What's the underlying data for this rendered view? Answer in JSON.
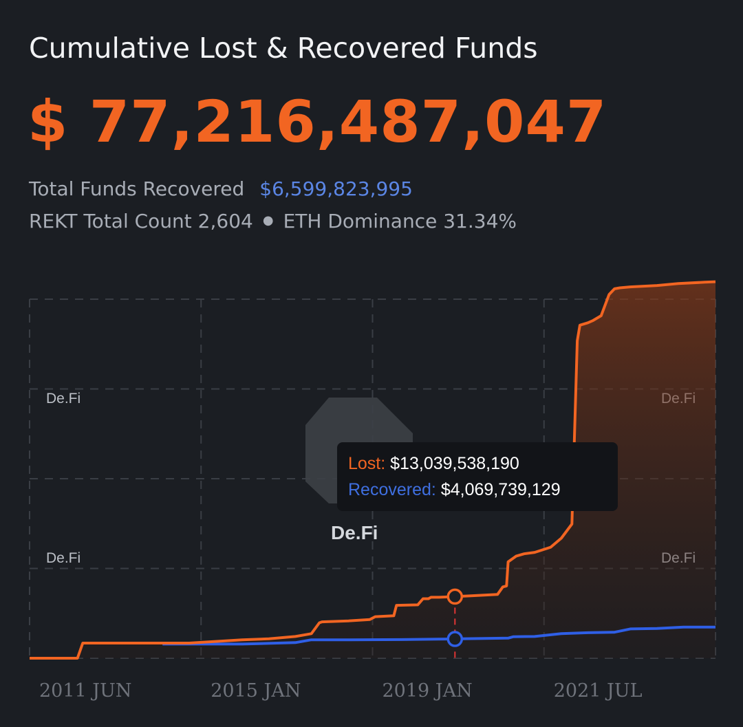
{
  "header": {
    "title": "Cumulative Lost & Recovered Funds",
    "total": "$ 77,216,487,047",
    "recovered_label": "Total Funds Recovered",
    "recovered_value": "$6,599,823,995",
    "count_label": "REKT Total Count 2,604",
    "dominance_label": "ETH Dominance 31.34%"
  },
  "watermark": {
    "small": "De.Fi",
    "big": "De.Fi"
  },
  "tooltip": {
    "lost_label": "Lost:",
    "lost_value": "$13,039,538,190",
    "recovered_label": "Recovered:",
    "recovered_value": "$4,069,739,129"
  },
  "colors": {
    "lost": "#f26522",
    "recovered": "#2f5fe6",
    "background": "#1b1e23"
  },
  "chart_data": {
    "type": "area",
    "x_tick_labels": [
      "2011 JUN",
      "2015 JAN",
      "2019 JAN",
      "2021 JUL"
    ],
    "x_range": [
      2011.0,
      2023.9
    ],
    "y_range_billion_usd": [
      0,
      76
    ],
    "grid": true,
    "series": [
      {
        "name": "Lost",
        "unit": "billion USD",
        "x": [
          2011.0,
          2011.9,
          2012.0,
          2013.0,
          2014.0,
          2015.0,
          2015.5,
          2016.0,
          2016.3,
          2016.45,
          2016.5,
          2017.0,
          2017.4,
          2017.5,
          2017.85,
          2017.9,
          2018.3,
          2018.4,
          2018.5,
          2018.55,
          2018.7,
          2019.0,
          2019.3,
          2019.8,
          2019.9,
          2019.97,
          2020.0,
          2020.15,
          2020.3,
          2020.5,
          2020.8,
          2021.0,
          2021.2,
          2021.3,
          2021.35,
          2021.5,
          2021.6,
          2021.75,
          2021.9,
          2022.0,
          2022.1,
          2022.3,
          2022.8,
          2023.2,
          2023.7,
          2023.9
        ],
        "y": [
          0,
          0,
          3.2,
          3.2,
          3.2,
          3.9,
          4.1,
          4.6,
          5.2,
          7.5,
          7.7,
          7.9,
          8.2,
          8.8,
          9.0,
          11.2,
          11.3,
          12.6,
          12.6,
          12.9,
          12.9,
          13.04,
          13.2,
          13.5,
          15.1,
          15.3,
          20.4,
          21.6,
          22.1,
          22.4,
          23.5,
          25.4,
          28.4,
          67.2,
          70.5,
          71.0,
          71.5,
          72.5,
          77.0,
          78.2,
          78.4,
          78.6,
          78.9,
          79.3,
          79.6,
          79.7
        ]
      },
      {
        "name": "Recovered",
        "unit": "billion USD",
        "x": [
          2013.5,
          2015.0,
          2016.0,
          2016.3,
          2017.0,
          2018.0,
          2019.0,
          2019.1,
          2020.0,
          2020.1,
          2020.5,
          2021.0,
          2021.5,
          2022.0,
          2022.3,
          2022.8,
          2023.3,
          2023.9
        ],
        "y": [
          3.0,
          3.0,
          3.3,
          3.9,
          3.9,
          3.95,
          4.07,
          4.1,
          4.25,
          4.55,
          4.6,
          5.2,
          5.4,
          5.5,
          6.2,
          6.3,
          6.6,
          6.6
        ]
      }
    ],
    "hover": {
      "x": 2019.0,
      "lost": 13.04,
      "recovered": 4.07
    }
  }
}
